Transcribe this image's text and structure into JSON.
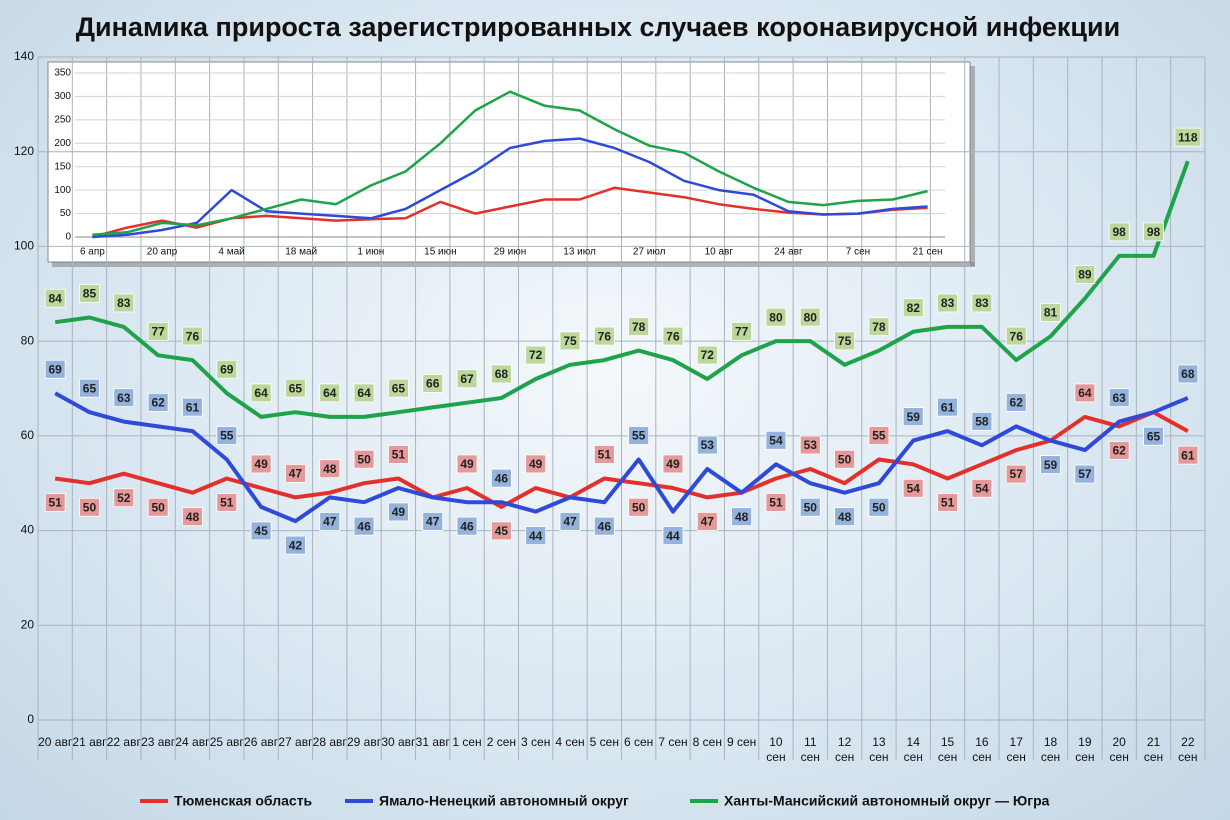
{
  "chart_data": [
    {
      "type": "line",
      "title": "Динамика прироста зарегистрированных случаев коронавирусной инфекции",
      "categories": [
        "20 авг",
        "21 авг",
        "22 авг",
        "23 авг",
        "24 авг",
        "25 авг",
        "26 авг",
        "27 авг",
        "28 авг",
        "29 авг",
        "30 авг",
        "31 авг",
        "1 сен",
        "2 сен",
        "3 сен",
        "4 сен",
        "5 сен",
        "6 сен",
        "7 сен",
        "8 сен",
        "9 сен",
        "10 сен",
        "11 сен",
        "12 сен",
        "13 сен",
        "14 сен",
        "15 сен",
        "16 сен",
        "17 сен",
        "18 сен",
        "19 сен",
        "20 сен",
        "21 сен",
        "22 сен"
      ],
      "series": [
        {
          "name": "Тюменская область",
          "color": "#e4302a",
          "label_fill": "#e59a99",
          "values": [
            51,
            50,
            52,
            50,
            48,
            51,
            49,
            47,
            48,
            50,
            51,
            47,
            49,
            45,
            49,
            47,
            51,
            50,
            49,
            47,
            48,
            51,
            53,
            50,
            55,
            54,
            51,
            54,
            57,
            59,
            64,
            62,
            65,
            61
          ]
        },
        {
          "name": "Ямало-Ненецкий автономный округ",
          "color": "#2f4ad8",
          "label_fill": "#93b2dc",
          "values": [
            69,
            65,
            63,
            62,
            61,
            55,
            45,
            42,
            47,
            46,
            49,
            47,
            46,
            46,
            44,
            47,
            46,
            55,
            44,
            53,
            48,
            54,
            50,
            48,
            50,
            59,
            61,
            58,
            62,
            59,
            57,
            63,
            65,
            68
          ]
        },
        {
          "name": "Ханты-Мансийский автономный округ — Югра",
          "color": "#1ea34b",
          "label_fill": "#bcd79a",
          "values": [
            84,
            85,
            83,
            77,
            76,
            69,
            64,
            65,
            64,
            64,
            65,
            66,
            67,
            68,
            72,
            75,
            76,
            78,
            76,
            72,
            77,
            80,
            80,
            75,
            78,
            82,
            83,
            83,
            76,
            81,
            89,
            98,
            98,
            118
          ]
        }
      ],
      "ylim": [
        0,
        140
      ],
      "yticks": [
        0,
        20,
        40,
        60,
        80,
        100,
        120,
        140
      ],
      "grid": true,
      "data_labels": true,
      "legend": "bottom"
    },
    {
      "type": "line",
      "categories": [
        "6 апр",
        null,
        "20 апр",
        null,
        "4 май",
        null,
        "18 май",
        null,
        "1 июн",
        null,
        "15 июн",
        null,
        "29 июн",
        null,
        "13 июл",
        null,
        "27 июл",
        null,
        "10 авг",
        null,
        "24 авг",
        null,
        "7 сен",
        null,
        "21 сен"
      ],
      "series": [
        {
          "color": "#e4302a",
          "values": [
            0,
            20,
            35,
            20,
            40,
            45,
            40,
            35,
            38,
            40,
            75,
            50,
            65,
            80,
            80,
            105,
            95,
            85,
            70,
            60,
            52,
            48,
            50,
            58,
            62
          ]
        },
        {
          "color": "#2f4ad8",
          "values": [
            0,
            5,
            15,
            30,
            100,
            55,
            50,
            45,
            40,
            60,
            100,
            140,
            190,
            205,
            210,
            190,
            160,
            120,
            100,
            90,
            55,
            48,
            50,
            60,
            65
          ]
        },
        {
          "color": "#1ea34b",
          "values": [
            5,
            10,
            30,
            25,
            40,
            60,
            80,
            70,
            110,
            140,
            200,
            270,
            310,
            280,
            270,
            230,
            195,
            180,
            140,
            105,
            75,
            68,
            77,
            80,
            98
          ]
        }
      ],
      "ylim": [
        0,
        350
      ],
      "yticks": [
        0,
        50,
        100,
        150,
        200,
        250,
        300,
        350
      ],
      "grid": true,
      "data_labels": false
    }
  ]
}
